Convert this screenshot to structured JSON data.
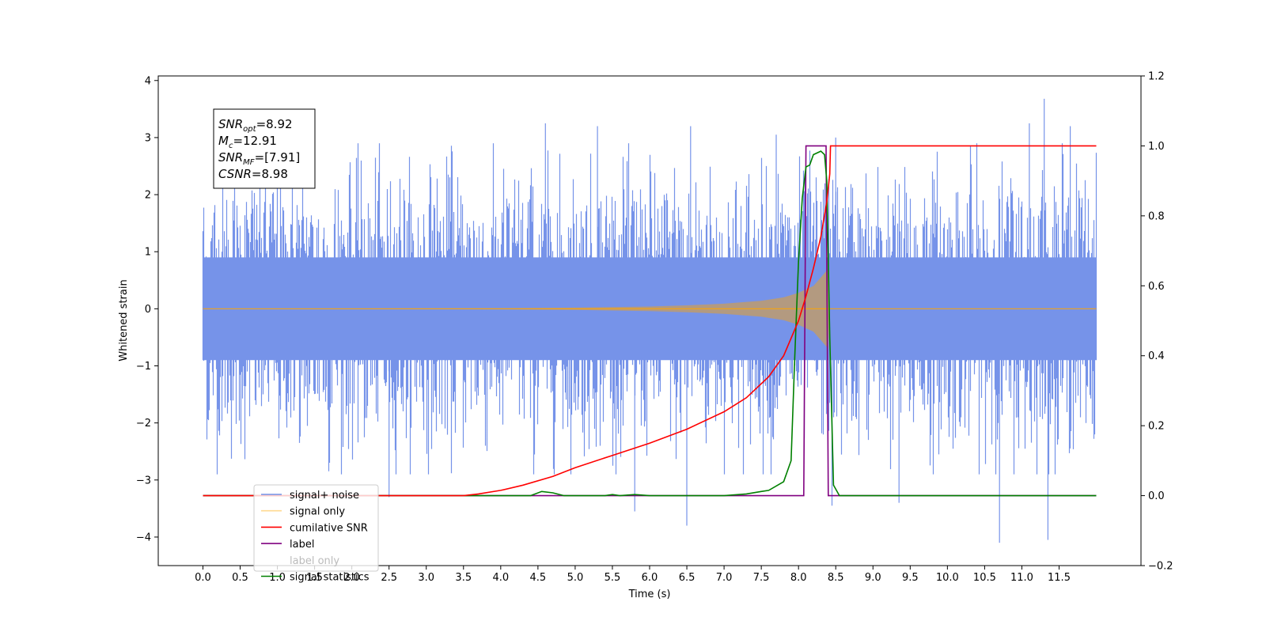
{
  "chart_data": {
    "type": "line",
    "xlabel": "Time (s)",
    "ylabel": "Whitened strain",
    "xlim": [
      -0.6,
      12.6
    ],
    "ylim": [
      -4.5,
      4.08
    ],
    "y2lim": [
      -0.2,
      1.2
    ],
    "x_ticks": [
      0.0,
      0.5,
      1.0,
      1.5,
      2.0,
      2.5,
      3.0,
      3.5,
      4.0,
      4.5,
      5.0,
      5.5,
      6.0,
      6.5,
      7.0,
      7.5,
      8.0,
      8.5,
      9.0,
      9.5,
      10.0,
      10.5,
      11.0,
      11.5
    ],
    "x_tick_labels": [
      "0.0",
      "0.5",
      "1.0",
      "1.5",
      "2.0",
      "2.5",
      "3.0",
      "3.5",
      "4.0",
      "4.5",
      "5.0",
      "5.5",
      "6.0",
      "6.5",
      "7.0",
      "7.5",
      "8.0",
      "8.5",
      "9.0",
      "9.5",
      "10.0",
      "10.5",
      "11.0",
      "11.5"
    ],
    "y_ticks": [
      -4,
      -3,
      -2,
      -1,
      0,
      1,
      2,
      3,
      4
    ],
    "y_tick_labels": [
      "−4",
      "−3",
      "−2",
      "−1",
      "0",
      "1",
      "2",
      "3",
      "4"
    ],
    "y2_ticks": [
      -0.2,
      0.0,
      0.2,
      0.4,
      0.6,
      0.8,
      1.0,
      1.2
    ],
    "y2_tick_labels": [
      "−0.2",
      "0.0",
      "0.2",
      "0.4",
      "0.6",
      "0.8",
      "1.0",
      "1.2"
    ],
    "legend_placement": "lower-left",
    "grid": false,
    "annotation": {
      "lines": [
        {
          "main": "SNR",
          "sub": "opt",
          "rest": "=8.92"
        },
        {
          "main": "M",
          "sub": "c",
          "rest": "=12.91"
        },
        {
          "main": "SNR",
          "sub": "MF",
          "rest": "=[7.91]"
        },
        {
          "main": "CSNR",
          "sub": "",
          "rest": "=8.98"
        }
      ]
    },
    "series": [
      {
        "name": "signal+ noise",
        "color": "#4169e1",
        "axis": "left",
        "note_extent": [
          0.0,
          12.0
        ],
        "y_range": [
          -4.1,
          3.68
        ],
        "outliers": [
          [
            1.0,
            2.6
          ],
          [
            2.5,
            -3.3
          ],
          [
            4.6,
            3.25
          ],
          [
            5.3,
            3.2
          ],
          [
            5.8,
            -3.55
          ],
          [
            6.5,
            -3.8
          ],
          [
            6.55,
            3.2
          ],
          [
            7.7,
            3.05
          ],
          [
            8.45,
            -3.45
          ],
          [
            8.5,
            3.0
          ],
          [
            9.35,
            -3.4
          ],
          [
            10.7,
            -4.1
          ],
          [
            11.1,
            3.25
          ],
          [
            11.3,
            3.68
          ],
          [
            11.35,
            -4.05
          ],
          [
            11.65,
            3.2
          ]
        ]
      },
      {
        "name": "signal only",
        "color": "#ffa500",
        "axis": "left",
        "envelope": {
          "x": [
            0.0,
            4.0,
            5.0,
            6.0,
            6.5,
            7.0,
            7.5,
            7.8,
            8.0,
            8.2,
            8.3,
            8.4,
            8.42,
            12.0
          ],
          "amp": [
            0.0,
            0.01,
            0.02,
            0.04,
            0.06,
            0.09,
            0.14,
            0.2,
            0.28,
            0.4,
            0.55,
            0.7,
            0.0,
            0.0
          ]
        }
      },
      {
        "name": "cumilative SNR",
        "color": "#ff0000",
        "axis": "right",
        "x": [
          0.0,
          3.5,
          3.7,
          4.0,
          4.3,
          4.7,
          5.0,
          5.5,
          6.0,
          6.5,
          7.0,
          7.3,
          7.6,
          7.8,
          8.0,
          8.1,
          8.2,
          8.3,
          8.38,
          8.42,
          8.43,
          12.0
        ],
        "y": [
          0.0,
          0.0,
          0.005,
          0.015,
          0.03,
          0.055,
          0.08,
          0.115,
          0.15,
          0.19,
          0.24,
          0.28,
          0.34,
          0.4,
          0.5,
          0.57,
          0.65,
          0.74,
          0.84,
          0.92,
          1.0,
          1.0
        ]
      },
      {
        "name": "label",
        "color": "#800080",
        "axis": "right",
        "x": [
          0.0,
          8.07,
          8.1,
          8.37,
          8.4,
          12.0
        ],
        "y": [
          0.0,
          0.0,
          1.0,
          1.0,
          0.0,
          0.0
        ]
      },
      {
        "name": "label only",
        "color": "#808080",
        "axis": "right",
        "x": [],
        "y": []
      },
      {
        "name": "signal statistics",
        "color": "#008000",
        "axis": "right",
        "x": [
          0.0,
          4.4,
          4.55,
          4.7,
          4.85,
          5.4,
          5.5,
          5.6,
          5.8,
          6.0,
          7.0,
          7.3,
          7.5,
          7.6,
          7.8,
          7.9,
          7.95,
          8.0,
          8.05,
          8.1,
          8.15,
          8.2,
          8.3,
          8.35,
          8.38,
          8.42,
          8.47,
          8.55,
          12.0
        ],
        "y": [
          0.0,
          0.0,
          0.012,
          0.008,
          0.0,
          0.0,
          0.003,
          0.0,
          0.003,
          0.0,
          0.0,
          0.005,
          0.012,
          0.015,
          0.04,
          0.1,
          0.4,
          0.67,
          0.85,
          0.94,
          0.945,
          0.975,
          0.985,
          0.975,
          0.9,
          0.45,
          0.03,
          0.0,
          0.0
        ]
      }
    ]
  }
}
